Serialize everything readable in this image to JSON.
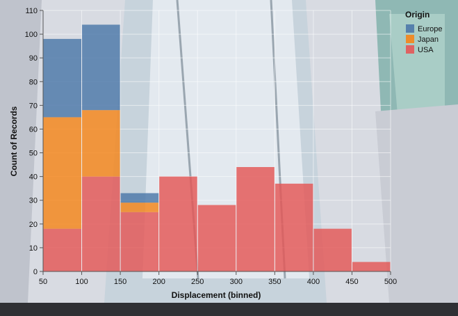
{
  "chart_data": {
    "type": "bar",
    "stacked": true,
    "xlabel": "Displacement (binned)",
    "ylabel": "Count of Records",
    "x_ticks": [
      50,
      100,
      150,
      200,
      250,
      300,
      350,
      400,
      450,
      500
    ],
    "y_ticks": [
      0,
      10,
      20,
      30,
      40,
      50,
      60,
      70,
      80,
      90,
      100,
      110
    ],
    "xlim": [
      50,
      500
    ],
    "ylim": [
      0,
      110
    ],
    "bins": [
      [
        50,
        100
      ],
      [
        100,
        150
      ],
      [
        150,
        200
      ],
      [
        200,
        250
      ],
      [
        250,
        300
      ],
      [
        300,
        350
      ],
      [
        350,
        400
      ],
      [
        400,
        450
      ],
      [
        450,
        500
      ]
    ],
    "series": [
      {
        "name": "Europe",
        "color": "#4c78a8",
        "values": [
          33,
          36,
          4,
          0,
          0,
          0,
          0,
          0,
          0
        ]
      },
      {
        "name": "Japan",
        "color": "#f58518",
        "values": [
          47,
          28,
          4,
          0,
          0,
          0,
          0,
          0,
          0
        ]
      },
      {
        "name": "USA",
        "color": "#e45756",
        "values": [
          18,
          40,
          25,
          40,
          28,
          44,
          37,
          18,
          4
        ]
      }
    ],
    "legend_title": "Origin",
    "legend_position": "top-right",
    "grid": true
  }
}
